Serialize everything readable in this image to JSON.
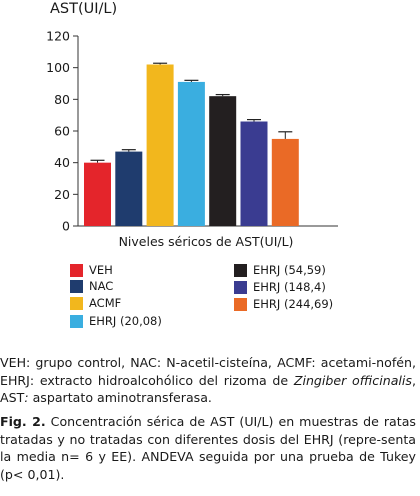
{
  "chart_data": {
    "type": "bar",
    "title": "AST(UI/L)",
    "xlabel": "Niveles séricos de AST(UI/L)",
    "ylabel": "",
    "ylim": [
      0,
      120
    ],
    "yticks": [
      0,
      20,
      40,
      60,
      80,
      100,
      120
    ],
    "grid": false,
    "legend_position": "bottom",
    "categories": [
      "VEH",
      "NAC",
      "ACMF",
      "EHRJ (20,08)",
      "EHRJ (54,59)",
      "EHRJ (148,4)",
      "EHRJ (244,69)"
    ],
    "values": [
      40,
      47,
      102,
      91,
      82,
      66,
      55
    ],
    "error": [
      1.5,
      1.2,
      0.8,
      1.0,
      1.0,
      1.2,
      4.5
    ],
    "colors": [
      "#E4252B",
      "#1F3C6E",
      "#F2B71D",
      "#3AAEE0",
      "#231F20",
      "#3A3C91",
      "#EA6A26"
    ]
  },
  "caption": {
    "part1": "VEH: grupo control, NAC: N-acetil-cisteína, ACMF: acetami-nofén, EHRJ: extracto hidroalcohólico del rizoma de ",
    "species": "Zingiber officinalis",
    "part2": ", AST",
    "colon": ":",
    "part3": " aspartato aminotransferasa."
  },
  "figure_caption": {
    "label": "Fig. 2.",
    "text": " Concentración sérica de AST (UI/L) en muestras de ratas tratadas y no tratadas con diferentes dosis del EHRJ (repre-senta la media n= 6 y EE). ANDEVA seguida por una prueba de Tukey (p< 0,01)."
  }
}
